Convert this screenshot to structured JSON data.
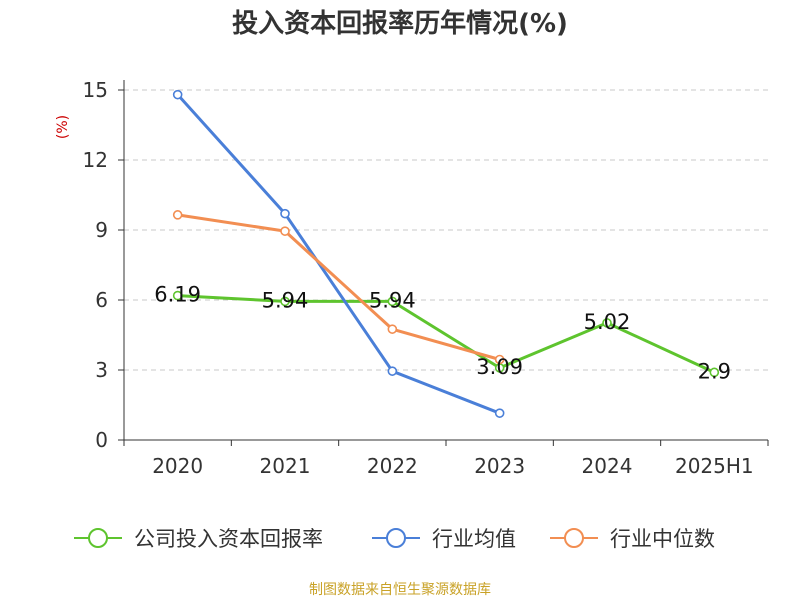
{
  "chart_data": {
    "type": "line",
    "title": "投入资本回报率历年情况(%)",
    "y_unit": "(%)",
    "categories": [
      "2020",
      "2021",
      "2022",
      "2023",
      "2024",
      "2025H1"
    ],
    "ylim": [
      0,
      15
    ],
    "yticks": [
      0,
      3,
      6,
      9,
      12,
      15
    ],
    "grid": true,
    "legend_position": "bottom",
    "series": [
      {
        "name": "公司投入资本回报率",
        "color": "#5ec42e",
        "values": [
          6.19,
          5.94,
          5.94,
          3.09,
          5.02,
          2.9
        ],
        "labels": [
          "6.19",
          "5.94",
          "5.94",
          "3.09",
          "5.02",
          "2.9"
        ]
      },
      {
        "name": "行业均值",
        "color": "#4a7fd8",
        "values": [
          14.8,
          9.7,
          2.95,
          1.15,
          null,
          null
        ]
      },
      {
        "name": "行业中位数",
        "color": "#f28e52",
        "values": [
          9.65,
          8.95,
          4.75,
          3.45,
          null,
          null
        ]
      }
    ]
  },
  "source": "制图数据来自恒生聚源数据库"
}
